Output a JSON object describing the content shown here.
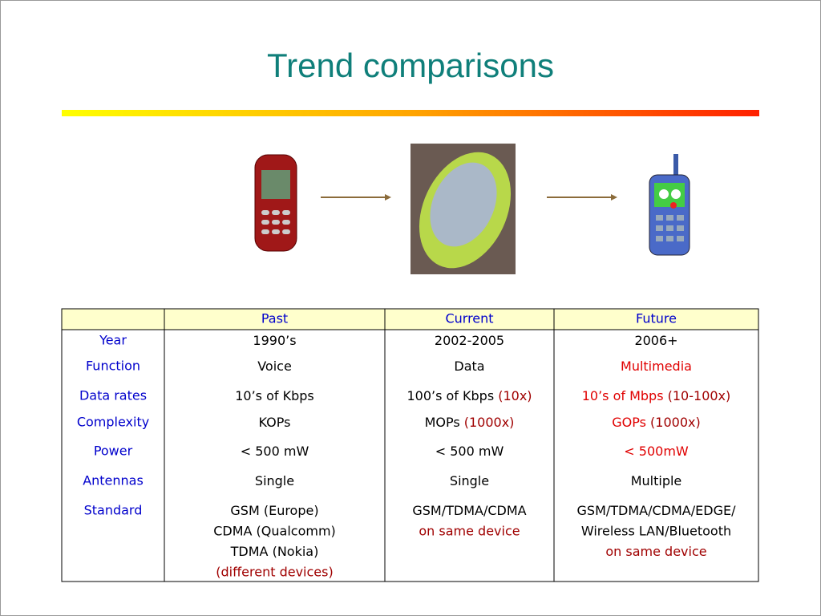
{
  "title": "Trend comparisons",
  "table": {
    "header": [
      "Past",
      "Current",
      "Future"
    ],
    "rows": [
      {
        "label": "Year",
        "cells": [
          [
            [
              {
                "text": "1990’s",
                "color": "#000000"
              }
            ]
          ],
          [
            [
              {
                "text": "2002-2005",
                "color": "#000000"
              }
            ]
          ],
          [
            [
              {
                "text": "2006+",
                "color": "#000000"
              }
            ]
          ]
        ]
      },
      {
        "label": "Function",
        "cells": [
          [
            [
              {
                "text": "Voice",
                "color": "#000000"
              }
            ]
          ],
          [
            [
              {
                "text": "Data",
                "color": "#000000"
              }
            ]
          ],
          [
            [
              {
                "text": "Multimedia",
                "color": "#e00000"
              }
            ]
          ]
        ]
      },
      {
        "label": "Data rates",
        "cells": [
          [
            [
              {
                "text": "10’s of Kbps",
                "color": "#000000"
              }
            ]
          ],
          [
            [
              {
                "text": "100’s of Kbps ",
                "color": "#000000"
              },
              {
                "text": "(10x)",
                "color": "#a00000"
              }
            ]
          ],
          [
            [
              {
                "text": "10’s of Mbps",
                "color": "#e00000"
              },
              {
                "text": " (10-100x)",
                "color": "#a00000"
              }
            ]
          ]
        ]
      },
      {
        "label": "Complexity",
        "cells": [
          [
            [
              {
                "text": "KOPs",
                "color": "#000000"
              }
            ]
          ],
          [
            [
              {
                "text": "MOPs ",
                "color": "#000000"
              },
              {
                "text": "(1000x)",
                "color": "#a00000"
              }
            ]
          ],
          [
            [
              {
                "text": "GOPs",
                "color": "#e00000"
              },
              {
                "text": " (1000x)",
                "color": "#a00000"
              }
            ]
          ]
        ]
      },
      {
        "label": "Power",
        "cells": [
          [
            [
              {
                "text": "< 500 mW",
                "color": "#000000"
              }
            ]
          ],
          [
            [
              {
                "text": "< 500 mW",
                "color": "#000000"
              }
            ]
          ],
          [
            [
              {
                "text": "< 500mW",
                "color": "#e00000"
              }
            ]
          ]
        ]
      },
      {
        "label": "Antennas",
        "cells": [
          [
            [
              {
                "text": "Single",
                "color": "#000000"
              }
            ]
          ],
          [
            [
              {
                "text": "Single",
                "color": "#000000"
              }
            ]
          ],
          [
            [
              {
                "text": "Multiple",
                "color": "#000000"
              }
            ]
          ]
        ]
      },
      {
        "label": "Standard",
        "cells": [
          [
            [
              {
                "text": "GSM (Europe)",
                "color": "#000000"
              }
            ],
            [
              {
                "text": "CDMA (Qualcomm)",
                "color": "#000000"
              }
            ],
            [
              {
                "text": "TDMA (Nokia)",
                "color": "#000000"
              }
            ],
            [
              {
                "text": "(different devices)",
                "color": "#a00000"
              }
            ]
          ],
          [
            [
              {
                "text": "GSM/TDMA/CDMA",
                "color": "#000000"
              }
            ],
            [
              {
                "text": "on same device",
                "color": "#a00000"
              }
            ]
          ],
          [
            [
              {
                "text": "GSM/TDMA/CDMA/EDGE/",
                "color": "#000000"
              }
            ],
            [
              {
                "text": "Wireless LAN/Bluetooth",
                "color": "#000000"
              }
            ],
            [
              {
                "text": "on same device",
                "color": "#a00000"
              }
            ]
          ]
        ]
      }
    ]
  }
}
